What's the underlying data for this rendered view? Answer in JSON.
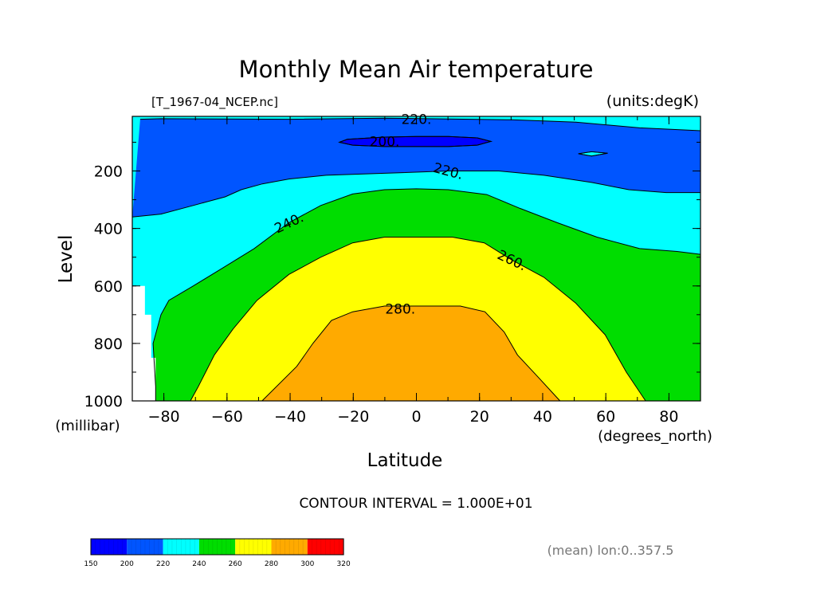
{
  "chart_data": {
    "type": "contour",
    "title": "Monthly Mean Air temperature",
    "file_label": "[T_1967-04_NCEP.nc]",
    "units_label": "(units:degK)",
    "xlabel": "Latitude",
    "x_units": "(degrees_north)",
    "ylabel": "Level",
    "y_units": "(millibar)",
    "xlim": [
      -90,
      90
    ],
    "ylim": [
      1000,
      10
    ],
    "x_ticks": [
      "-80",
      "-60",
      "-40",
      "-20",
      "0",
      "20",
      "40",
      "60",
      "80"
    ],
    "y_ticks": [
      "200",
      "400",
      "600",
      "800",
      "1000"
    ],
    "contour_labels": [
      "220.",
      "200.",
      "220.",
      "240.",
      "260.",
      "280."
    ],
    "contour_interval": "CONTOUR INTERVAL = 1.000E+01",
    "mean_note": "(mean) lon:0..357.5",
    "levels": [
      150,
      200,
      220,
      240,
      260,
      280,
      300,
      320
    ],
    "level_labels": [
      "150",
      "200",
      "220",
      "240",
      "260",
      "280",
      "300",
      "320"
    ],
    "level_colors": [
      "#0000ff",
      "#0055ff",
      "#00ffff",
      "#00dd00",
      "#ffff00",
      "#ffaa00",
      "#ff0000"
    ],
    "contours": [
      {
        "level": 280,
        "points": [
          [
            -48.9,
            1000
          ],
          [
            -37.9,
            880
          ],
          [
            -32.8,
            800
          ],
          [
            -26.9,
            720
          ],
          [
            -20.2,
            690
          ],
          [
            -10.1,
            670
          ],
          [
            0,
            670
          ],
          [
            13.9,
            670
          ],
          [
            21.7,
            690
          ],
          [
            27.8,
            760
          ],
          [
            32.0,
            840
          ],
          [
            38.8,
            920
          ],
          [
            45.5,
            1000
          ]
        ]
      },
      {
        "level": 260,
        "points": [
          [
            -71.6,
            1000
          ],
          [
            -69.1,
            950
          ],
          [
            -64.0,
            840
          ],
          [
            -58.1,
            750
          ],
          [
            -50.5,
            650
          ],
          [
            -40.4,
            560
          ],
          [
            -30.3,
            500
          ],
          [
            -20.2,
            450
          ],
          [
            -10.1,
            430
          ],
          [
            0,
            430
          ],
          [
            11.4,
            430
          ],
          [
            21.5,
            450
          ],
          [
            30.3,
            510
          ],
          [
            40.4,
            570
          ],
          [
            50.5,
            660
          ],
          [
            59.8,
            770
          ],
          [
            66.5,
            900
          ],
          [
            72.6,
            1000
          ]
        ]
      },
      {
        "level": 240,
        "points": [
          [
            -82.6,
            1000
          ],
          [
            -82.6,
            950
          ],
          [
            -83.4,
            800
          ],
          [
            -80.9,
            700
          ],
          [
            -78.4,
            650
          ],
          [
            -70.7,
            600
          ],
          [
            -61.7,
            540
          ],
          [
            -51.4,
            470
          ],
          [
            -40.4,
            380
          ],
          [
            -30.3,
            320
          ],
          [
            -20.2,
            280
          ],
          [
            -10.1,
            265
          ],
          [
            0,
            262
          ],
          [
            10.1,
            265
          ],
          [
            22.3,
            282
          ],
          [
            32.8,
            330
          ],
          [
            44.6,
            380
          ],
          [
            57.2,
            430
          ],
          [
            70.7,
            470
          ],
          [
            82.6,
            480
          ],
          [
            90,
            490
          ]
        ]
      },
      {
        "level": 220,
        "points": [
          [
            -90,
            360
          ],
          [
            -80.9,
            350
          ],
          [
            -70.7,
            320
          ],
          [
            -60.6,
            290
          ],
          [
            -55.5,
            265
          ],
          [
            -48.8,
            245
          ],
          [
            -40.4,
            228
          ],
          [
            -28.6,
            215
          ],
          [
            -10.1,
            208
          ],
          [
            10.1,
            200
          ],
          [
            26.1,
            200
          ],
          [
            40.4,
            215
          ],
          [
            55.5,
            240
          ],
          [
            67.3,
            265
          ],
          [
            79.1,
            275
          ],
          [
            90,
            275
          ]
        ]
      },
      {
        "level": 200,
        "points": [
          [
            -24.4,
            100
          ],
          [
            -21.9,
            90
          ],
          [
            -10.1,
            82
          ],
          [
            0,
            80
          ],
          [
            10.1,
            80
          ],
          [
            19.3,
            85
          ],
          [
            23.6,
            97
          ],
          [
            19.3,
            110
          ],
          [
            10.1,
            115
          ],
          [
            0,
            115
          ],
          [
            -10.1,
            115
          ],
          [
            -20.2,
            110
          ],
          [
            -24.4,
            100
          ]
        ]
      },
      {
        "level": 220,
        "points": [
          [
            -87.5,
            20
          ],
          [
            -80.9,
            18
          ],
          [
            -40.4,
            20
          ],
          [
            -10.1,
            16
          ],
          [
            30.3,
            22
          ],
          [
            50.5,
            30
          ],
          [
            70.7,
            50
          ],
          [
            90,
            60
          ]
        ]
      },
      {
        "level": 220,
        "points": [
          [
            51.3,
            140
          ],
          [
            55.5,
            133
          ],
          [
            60.6,
            138
          ],
          [
            55.5,
            148
          ],
          [
            51.3,
            140
          ]
        ]
      }
    ]
  }
}
